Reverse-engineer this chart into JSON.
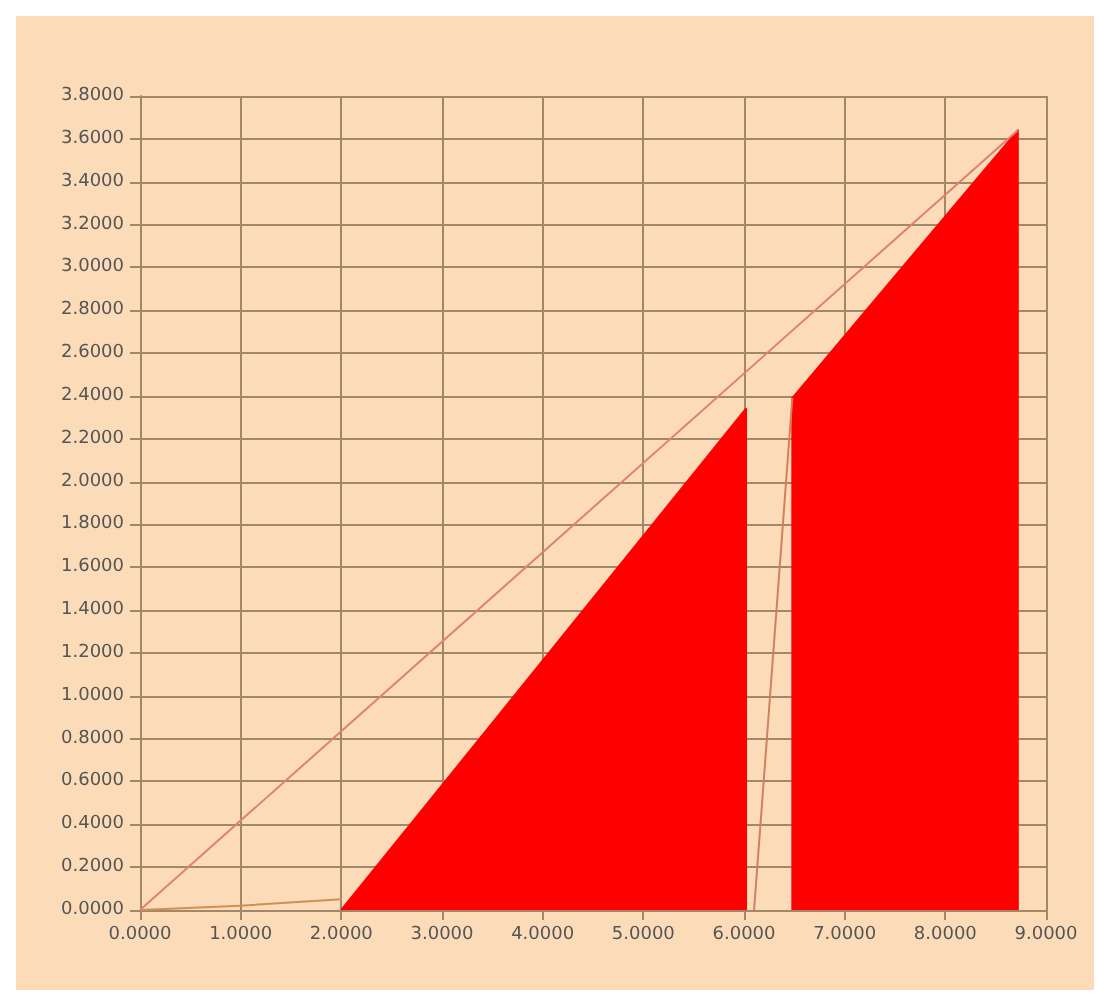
{
  "chart_data": {
    "type": "area",
    "xlim": [
      0,
      9
    ],
    "ylim": [
      0,
      3.8
    ],
    "xticks": [
      {
        "value": 0,
        "label": "0.0000"
      },
      {
        "value": 1,
        "label": "1.0000"
      },
      {
        "value": 2,
        "label": "2.0000"
      },
      {
        "value": 3,
        "label": "3.0000"
      },
      {
        "value": 4,
        "label": "4.0000"
      },
      {
        "value": 5,
        "label": "5.0000"
      },
      {
        "value": 6,
        "label": "6.0000"
      },
      {
        "value": 7,
        "label": "7.0000"
      },
      {
        "value": 8,
        "label": "8.0000"
      },
      {
        "value": 9,
        "label": "9.0000"
      }
    ],
    "yticks": [
      {
        "value": 0,
        "label": "0.0000"
      },
      {
        "value": 0.2,
        "label": "0.2000"
      },
      {
        "value": 0.4,
        "label": "0.4000"
      },
      {
        "value": 0.6,
        "label": "0.6000"
      },
      {
        "value": 0.8,
        "label": "0.8000"
      },
      {
        "value": 1,
        "label": "1.0000"
      },
      {
        "value": 1.2,
        "label": "1.2000"
      },
      {
        "value": 1.4,
        "label": "1.4000"
      },
      {
        "value": 1.6,
        "label": "1.6000"
      },
      {
        "value": 1.8,
        "label": "1.8000"
      },
      {
        "value": 2,
        "label": "2.0000"
      },
      {
        "value": 2.2,
        "label": "2.2000"
      },
      {
        "value": 2.4,
        "label": "2.4000"
      },
      {
        "value": 2.6,
        "label": "2.6000"
      },
      {
        "value": 2.8,
        "label": "2.8000"
      },
      {
        "value": 3,
        "label": "3.0000"
      },
      {
        "value": 3.2,
        "label": "3.2000"
      },
      {
        "value": 3.4,
        "label": "3.4000"
      },
      {
        "value": 3.6,
        "label": "3.6000"
      },
      {
        "value": 3.8,
        "label": "3.8000"
      }
    ],
    "grid": true,
    "marker": "none",
    "series": [
      {
        "color": "#ff0000",
        "x": [
          2.0,
          6.02,
          6.02
        ],
        "values": [
          0,
          2.34,
          0
        ]
      },
      {
        "color": "#ff0000",
        "x": [
          6.48,
          6.48,
          8.72,
          8.72
        ],
        "values": [
          0,
          2.39,
          3.64,
          0
        ]
      },
      {
        "type": "line",
        "color": "#d09050",
        "x": [
          0,
          1,
          2
        ],
        "values": [
          0,
          0.02,
          0.05
        ]
      },
      {
        "type": "line",
        "color": "#e08070",
        "x": [
          0,
          8.72
        ],
        "values": [
          0,
          3.64
        ]
      },
      {
        "type": "line",
        "color": "#d08060",
        "x": [
          6.1,
          6.48
        ],
        "values": [
          0,
          2.39
        ]
      }
    ]
  }
}
